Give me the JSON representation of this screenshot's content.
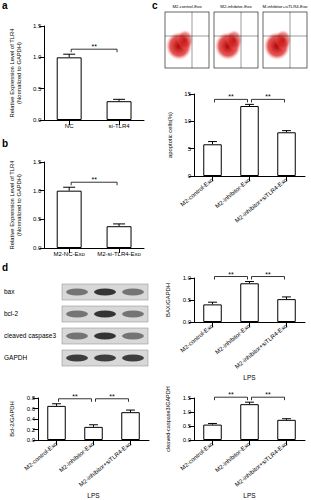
{
  "panel_letters": [
    "a",
    "b",
    "c",
    "d"
  ],
  "flow": {
    "titles": [
      "M2-control-Exo",
      "M2-inhibitor-Exo",
      "M-inhibitor+siTLR4-Exo"
    ]
  },
  "blot": {
    "labels": [
      "bax",
      "bcl-2",
      "cleaved caspase3",
      "GAPDH"
    ]
  },
  "chart_data": [
    {
      "type": "bar",
      "y_label": "Relative Expression Level of TLR4\n(Normalized to GAPDH)",
      "categories": [
        "NC",
        "si-TLR4"
      ],
      "values": [
        1.0,
        0.3
      ],
      "errors": [
        0.05,
        0.03
      ],
      "color": "#ffffff",
      "ylim": [
        0,
        1.5
      ],
      "yticks": [
        {
          "value": 0,
          "label": "0.0"
        },
        0.5,
        {
          "value": 1,
          "label": "1.0"
        },
        1.5
      ],
      "annotations": [
        {
          "text": "**",
          "between": [
            0,
            1
          ]
        }
      ]
    },
    {
      "type": "bar",
      "y_label": "Relative Expression Level of TLR4\n(Normalized to GAPDH)",
      "categories": [
        "M2-NC-Exo",
        "M2-si-TLR4-Exo"
      ],
      "values": [
        1.0,
        0.38
      ],
      "errors": [
        0.06,
        0.04
      ],
      "color": "#ffffff",
      "ylim": [
        0,
        1.5
      ],
      "yticks": [
        {
          "value": 0,
          "label": "0.0"
        },
        0.5,
        {
          "value": 1,
          "label": "1.0"
        },
        1.5
      ],
      "annotations": [
        {
          "text": "**",
          "between": [
            0,
            1
          ]
        }
      ]
    },
    {
      "type": "bar",
      "y_label": "apoptotic cells(%)",
      "categories": [
        "M2-control-Exo",
        "M2-inhibitor-Exo",
        "M2-inhibitor+siTLR4-Exo"
      ],
      "values": [
        5.8,
        12.8,
        8.0
      ],
      "errors": [
        0.5,
        0.3,
        0.3
      ],
      "color": "#ffffff",
      "ylim": [
        0,
        15
      ],
      "yticks": [
        0,
        5,
        10,
        15
      ],
      "annotations": [
        {
          "text": "**",
          "between": [
            0,
            1
          ]
        },
        {
          "text": "**",
          "between": [
            1,
            2
          ]
        }
      ]
    },
    {
      "type": "bar",
      "y_label": "BAX/GAPDH",
      "x_label": "LPS",
      "categories": [
        "M2-control-Exo",
        "M2-inhibitor-Exo",
        "M2-inhibitor+siTLR4-Exo"
      ],
      "values": [
        0.4,
        0.88,
        0.52
      ],
      "errors": [
        0.05,
        0.04,
        0.05
      ],
      "color": "#ffffff",
      "ylim": [
        0,
        1
      ],
      "yticks": [
        {
          "value": 0,
          "label": "0.0"
        },
        0.5,
        {
          "value": 1,
          "label": "1.0"
        }
      ],
      "annotations": [
        {
          "text": "**",
          "between": [
            0,
            1
          ]
        },
        {
          "text": "**",
          "between": [
            1,
            2
          ]
        }
      ]
    },
    {
      "type": "bar",
      "y_label": "Bcl-2/GAPDH",
      "x_label": "LPS",
      "categories": [
        "M2-control-Exo",
        "M2-inhibitor-Exo",
        "M2-inhibitor+siTLR4-Exo"
      ],
      "values": [
        0.65,
        0.25,
        0.53
      ],
      "errors": [
        0.04,
        0.04,
        0.04
      ],
      "color": "#ffffff",
      "ylim": [
        0,
        0.8
      ],
      "yticks": [
        {
          "value": 0,
          "label": "0.0"
        },
        0.2,
        0.4,
        0.6,
        0.8
      ],
      "annotations": [
        {
          "text": "**",
          "between": [
            0,
            1
          ]
        },
        {
          "text": "**",
          "between": [
            1,
            2
          ]
        }
      ]
    },
    {
      "type": "bar",
      "y_label": "cleaved-caspase3/GAPDH",
      "x_label": "LPS",
      "categories": [
        "M2-control-Exo",
        "M2-inhibitor-Exo",
        "M2-inhibitor+siTLR4-Exo"
      ],
      "values": [
        0.55,
        1.28,
        0.72
      ],
      "errors": [
        0.04,
        0.07,
        0.04
      ],
      "color": "#ffffff",
      "ylim": [
        0,
        1.5
      ],
      "yticks": [
        {
          "value": 0,
          "label": "0.0"
        },
        0.5,
        {
          "value": 1,
          "label": "1.0"
        },
        1.5
      ],
      "annotations": [
        {
          "text": "**",
          "between": [
            0,
            1
          ]
        },
        {
          "text": "**",
          "between": [
            1,
            2
          ]
        }
      ]
    }
  ]
}
